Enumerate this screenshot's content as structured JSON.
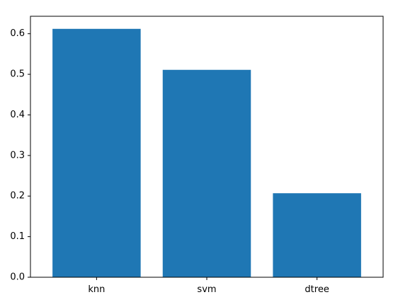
{
  "chart_data": {
    "type": "bar",
    "title": "",
    "xlabel": "",
    "ylabel": "",
    "categories": [
      "knn",
      "svm",
      "dtree"
    ],
    "values": [
      0.612,
      0.511,
      0.207
    ],
    "ylim": [
      0,
      0.643
    ],
    "yticks": [
      0.0,
      0.1,
      0.2,
      0.3,
      0.4,
      0.5,
      0.6
    ],
    "ytick_labels": [
      "0.0",
      "0.1",
      "0.2",
      "0.3",
      "0.4",
      "0.5",
      "0.6"
    ],
    "bar_color": "#1f77b4",
    "grid": false,
    "legend": "none"
  }
}
